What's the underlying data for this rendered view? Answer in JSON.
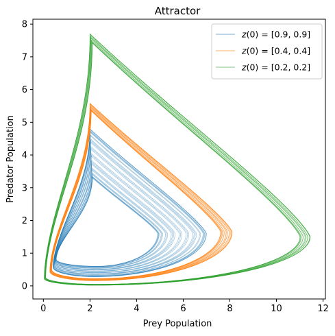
{
  "chart_data": {
    "type": "line",
    "title": "Attractor",
    "xlabel": "Prey Population",
    "ylabel": "Predator Population",
    "xlim": [
      -0.45,
      12.1
    ],
    "ylim": [
      -0.4,
      8.15
    ],
    "xticks": [
      0,
      2,
      4,
      6,
      8,
      10,
      12
    ],
    "yticks": [
      0,
      1,
      2,
      3,
      4,
      5,
      6,
      7,
      8
    ],
    "grid": false,
    "legend_position": "top-right",
    "series": [
      {
        "name": "z(0) = [0.9, 0.9]",
        "legend_parts": [
          "z",
          "(0) = [0.9, 0.9]"
        ],
        "color": "#1f77b4",
        "loops": 34,
        "outer": {
          "x": [
            0.42,
            7.0
          ],
          "y": [
            0.28,
            4.8
          ],
          "peak_x": 2.0,
          "left_low": 1.1,
          "right_peak_y": 1.6
        },
        "inner": {
          "x": [
            0.55,
            4.9
          ],
          "y": [
            0.6,
            3.3
          ],
          "peak_x": 2.1,
          "left_low": 1.2,
          "right_peak_y": 1.6
        }
      },
      {
        "name": "z(0) = [0.4, 0.4]",
        "legend_parts": [
          "z",
          "(0) = [0.4, 0.4]"
        ],
        "color": "#ff7f0e",
        "loops": 20,
        "outer": {
          "x": [
            0.28,
            8.1
          ],
          "y": [
            0.16,
            5.58
          ],
          "peak_x": 2.0,
          "left_low": 0.95,
          "right_peak_y": 1.65
        },
        "inner": {
          "x": [
            0.36,
            7.6
          ],
          "y": [
            0.22,
            5.35
          ],
          "peak_x": 2.05,
          "left_low": 1.0,
          "right_peak_y": 1.65
        }
      },
      {
        "name": "z(0) = [0.2, 0.2]",
        "legend_parts": [
          "z",
          "(0) = [0.2, 0.2]"
        ],
        "color": "#2ca02c",
        "loops": 16,
        "outer": {
          "x": [
            0.04,
            11.45
          ],
          "y": [
            0.02,
            7.7
          ],
          "peak_x": 2.0,
          "left_low": 0.6,
          "right_peak_y": 1.5
        },
        "inner": {
          "x": [
            0.1,
            11.0
          ],
          "y": [
            0.05,
            7.42
          ],
          "peak_x": 2.1,
          "left_low": 0.65,
          "right_peak_y": 1.5
        }
      }
    ]
  }
}
